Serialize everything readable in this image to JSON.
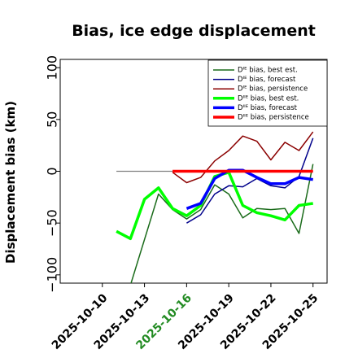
{
  "chart_data": {
    "type": "line",
    "title": "Bias, ice edge displacement",
    "ylabel": "Displacement bias (km)",
    "xlabel": "",
    "xlim": [
      "2025-10-07",
      "2025-10-26"
    ],
    "ylim": [
      -108,
      108
    ],
    "yticks": [
      -100,
      -50,
      0,
      50,
      100
    ],
    "ytick_labels": [
      "−100",
      "−50",
      "0",
      "50",
      "100"
    ],
    "xticks": [
      "2025-10-10",
      "2025-10-13",
      "2025-10-16",
      "2025-10-19",
      "2025-10-22",
      "2025-10-25"
    ],
    "xtick_labels": [
      "2025-10-10",
      "2025-10-13",
      "2025-10-16",
      "2025-10-19",
      "2025-10-22",
      "2025-10-25"
    ],
    "highlight_tick": "2025-10-16",
    "highlight_color": "#228b22",
    "zero_line": {
      "from": "2025-10-11",
      "to": "2025-10-25",
      "value": 0,
      "color": "#808080"
    },
    "legend_position": "upper-right",
    "series": [
      {
        "name": "Dᴵᴱ bias, best est.",
        "color": "#1a6b1a",
        "width": 1.5,
        "x": [
          "2025-10-12",
          "2025-10-14",
          "2025-10-15",
          "2025-10-16",
          "2025-10-17",
          "2025-10-18",
          "2025-10-19",
          "2025-10-20",
          "2025-10-21",
          "2025-10-22",
          "2025-10-23",
          "2025-10-24",
          "2025-10-25"
        ],
        "y": [
          -110,
          -22,
          -37,
          -46,
          -37,
          -13,
          -22,
          -45,
          -36,
          -37,
          -36,
          -60,
          7
        ]
      },
      {
        "name": "Dᴵᴱ bias, forecast",
        "color": "#00008b",
        "width": 1.5,
        "x": [
          "2025-10-16",
          "2025-10-17",
          "2025-10-18",
          "2025-10-19",
          "2025-10-20",
          "2025-10-21",
          "2025-10-22",
          "2025-10-23",
          "2025-10-24",
          "2025-10-25"
        ],
        "y": [
          -50,
          -42,
          -22,
          -14,
          -15,
          -7,
          -14,
          -16,
          -5,
          32
        ]
      },
      {
        "name": "Dᴵᴱ bias, persistence",
        "color": "#8b0000",
        "width": 1.5,
        "x": [
          "2025-10-15",
          "2025-10-16",
          "2025-10-17",
          "2025-10-18",
          "2025-10-19",
          "2025-10-20",
          "2025-10-21",
          "2025-10-22",
          "2025-10-23",
          "2025-10-24",
          "2025-10-25"
        ],
        "y": [
          -1,
          -11,
          -6,
          10,
          20,
          34,
          29,
          11,
          28,
          20,
          38
        ]
      },
      {
        "name": "Dᴵᴵᴱ bias, best est.",
        "color": "#00ff00",
        "width": 3.5,
        "x": [
          "2025-10-11",
          "2025-10-12",
          "2025-10-13",
          "2025-10-14",
          "2025-10-15",
          "2025-10-16",
          "2025-10-17",
          "2025-10-18",
          "2025-10-19",
          "2025-10-20",
          "2025-10-21",
          "2025-10-22",
          "2025-10-23",
          "2025-10-24",
          "2025-10-25"
        ],
        "y": [
          -58,
          -65,
          -27,
          -16,
          -36,
          -43,
          -33,
          -5,
          -1,
          -33,
          -40,
          -43,
          -47,
          -33,
          -31
        ]
      },
      {
        "name": "Dᴵᴵᴱ bias, forecast",
        "color": "#0000ff",
        "width": 3.5,
        "x": [
          "2025-10-16",
          "2025-10-17",
          "2025-10-18",
          "2025-10-19",
          "2025-10-20",
          "2025-10-21",
          "2025-10-22",
          "2025-10-23",
          "2025-10-24",
          "2025-10-25"
        ],
        "y": [
          -36,
          -31,
          -7,
          1,
          1,
          -6,
          -12,
          -12,
          -6,
          -8
        ]
      },
      {
        "name": "Dᴵᴵᴱ bias, persistence",
        "color": "#ff0000",
        "width": 3.5,
        "x": [
          "2025-10-15",
          "2025-10-16",
          "2025-10-17",
          "2025-10-18",
          "2025-10-19",
          "2025-10-20",
          "2025-10-21",
          "2025-10-22",
          "2025-10-23",
          "2025-10-24",
          "2025-10-25"
        ],
        "y": [
          0,
          0,
          0,
          0,
          0,
          0,
          0,
          0,
          0,
          0,
          0
        ]
      }
    ]
  }
}
